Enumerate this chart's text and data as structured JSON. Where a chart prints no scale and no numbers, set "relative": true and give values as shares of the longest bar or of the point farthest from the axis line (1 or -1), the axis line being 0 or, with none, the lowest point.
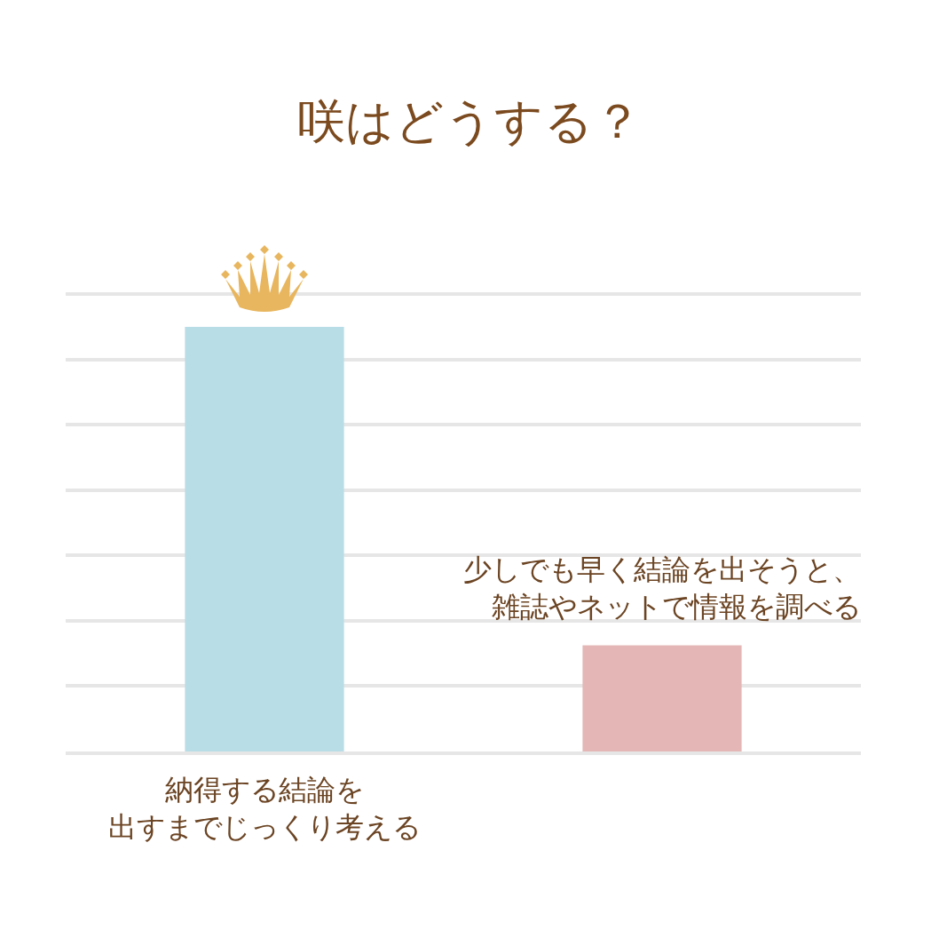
{
  "chart_data": {
    "type": "bar",
    "title": "咲はどうする？",
    "categories": [
      "納得する結論を出すまでじっくり考える",
      "少しでも早く結論を出そうと、雑誌やネットで情報を調べる"
    ],
    "values": [
      1,
      0.25
    ],
    "colors": [
      "#b8dde6",
      "#e4b6b6"
    ],
    "relative": true,
    "grid": "y"
  }
}
